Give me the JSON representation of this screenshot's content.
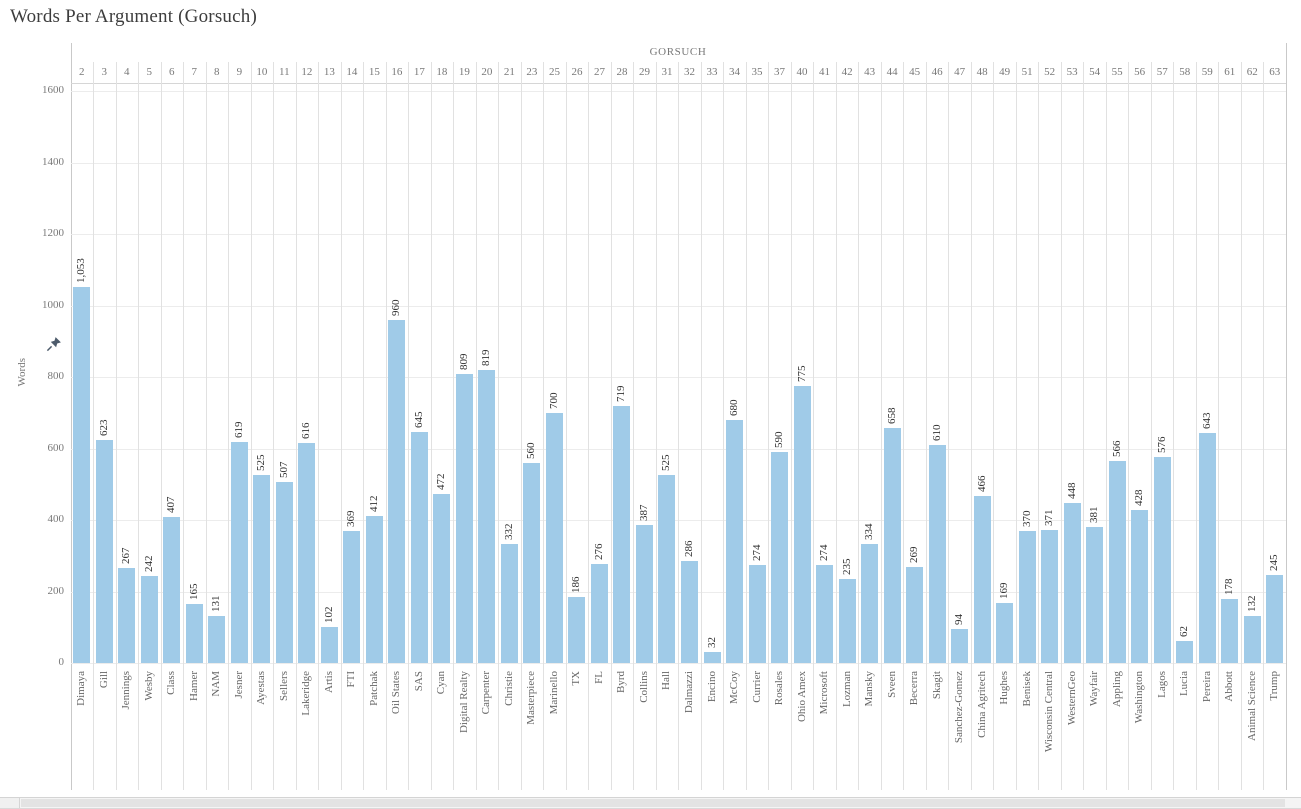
{
  "title": "Words Per Argument (Gorsuch)",
  "chart_data": {
    "type": "bar",
    "title": "Words Per Argument (Gorsuch)",
    "column_header_label": "GORSUCH",
    "ylabel": "Words",
    "ylim": [
      0,
      1600
    ],
    "ytick_interval": 200,
    "grid": true,
    "legend": false,
    "column_numbers": [
      2,
      3,
      4,
      5,
      6,
      7,
      8,
      9,
      10,
      11,
      12,
      13,
      14,
      15,
      16,
      17,
      18,
      19,
      20,
      21,
      23,
      25,
      26,
      27,
      28,
      29,
      31,
      32,
      33,
      34,
      35,
      37,
      40,
      41,
      42,
      43,
      44,
      45,
      46,
      47,
      48,
      49,
      51,
      52,
      53,
      54,
      55,
      56,
      57,
      58,
      59,
      61,
      62,
      63
    ],
    "categories": [
      "Dimaya",
      "Gill",
      "Jennings",
      "Wesby",
      "Class",
      "Hamer",
      "NAM",
      "Jesner",
      "Ayestas",
      "Sellers",
      "Lakeridge",
      "Artis",
      "FTI",
      "Patchak",
      "Oil States",
      "SAS",
      "Cyan",
      "Digital Realty",
      "Carpenter",
      "Christie",
      "Masterpiece",
      "Marinello",
      "TX",
      "FL",
      "Byrd",
      "Collins",
      "Hall",
      "Dalmazzi",
      "Encino",
      "McCoy",
      "Currier",
      "Rosales",
      "Ohio Amex",
      "Microsoft",
      "Lozman",
      "Mansky",
      "Sveen",
      "Becerra",
      "Skagit",
      "Sanchez-Gomez",
      "China Agritech",
      "Hughes",
      "Benisek",
      "Wisconsin Central",
      "WesternGeo",
      "Wayfair",
      "Appling",
      "Washington",
      "Lagos",
      "Lucia",
      "Pereira",
      "Abbott",
      "Animal Science",
      "Trump"
    ],
    "values": [
      1053,
      623,
      267,
      242,
      407,
      165,
      131,
      619,
      525,
      507,
      616,
      102,
      369,
      412,
      960,
      645,
      472,
      809,
      819,
      332,
      560,
      700,
      186,
      276,
      719,
      387,
      525,
      286,
      32,
      680,
      274,
      590,
      775,
      274,
      235,
      334,
      658,
      269,
      610,
      94,
      466,
      169,
      370,
      371,
      448,
      381,
      566,
      428,
      576,
      62,
      643,
      178,
      132,
      245
    ]
  },
  "colors": {
    "bar": "#a0cbe8",
    "title_text": "#3d3d3d",
    "axis_text": "#787878",
    "value_label_text": "#333333",
    "category_text": "#666666",
    "gridline": "#ececec",
    "separator": "#e1e1e1",
    "pane_border": "#c9c9c9",
    "pin_icon": "#4d5b6b"
  },
  "scrollbar": {
    "orientation": "horizontal"
  }
}
